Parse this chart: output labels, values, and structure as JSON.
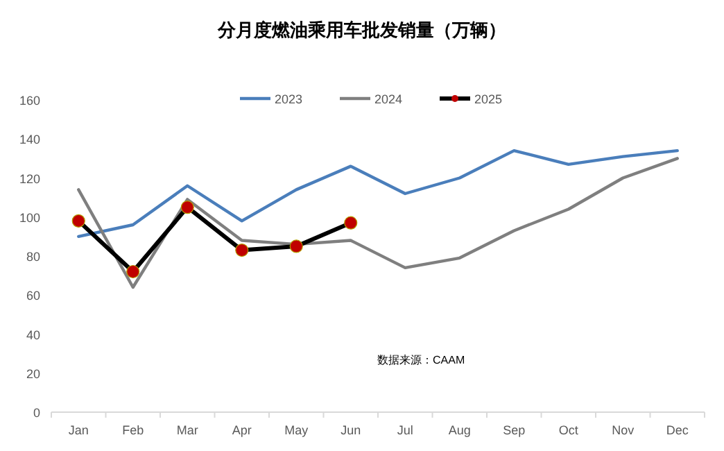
{
  "chart_data": {
    "type": "line",
    "title": "分月度燃油乘用车批发销量（万辆）",
    "categories": [
      "Jan",
      "Feb",
      "Mar",
      "Apr",
      "May",
      "Jun",
      "Jul",
      "Aug",
      "Sep",
      "Oct",
      "Nov",
      "Dec"
    ],
    "series": [
      {
        "name": "2023",
        "color": "#4a7ebb",
        "values": [
          90,
          96,
          116,
          98,
          114,
          126,
          112,
          120,
          134,
          127,
          131,
          134
        ]
      },
      {
        "name": "2024",
        "color": "#7f7f7f",
        "values": [
          114,
          64,
          109,
          88,
          86,
          88,
          74,
          79,
          93,
          104,
          120,
          130
        ]
      },
      {
        "name": "2025",
        "color": "#000000",
        "values": [
          98,
          72,
          105,
          83,
          85,
          97,
          null,
          null,
          null,
          null,
          null,
          null
        ],
        "marker": "circle"
      }
    ],
    "ylim": [
      0,
      160
    ],
    "yticks": [
      0,
      20,
      40,
      60,
      80,
      100,
      120,
      140,
      160
    ],
    "grid": false,
    "legend": "top",
    "annotations": [
      "数据来源：CAAM"
    ]
  }
}
